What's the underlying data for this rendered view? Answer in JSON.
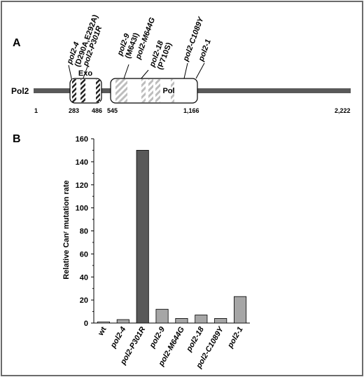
{
  "panel_a": {
    "letter": "A",
    "protein_label": "Pol2",
    "exo_label": "Exo",
    "pol_label": "Pol",
    "positions": [
      "1",
      "283",
      "486",
      "545",
      "1,166",
      "2,222"
    ],
    "mutation_labels": [
      {
        "line1": "pol2-4",
        "line2": "(D290A,E292A)"
      },
      {
        "line1": "pol2-P301R"
      },
      {
        "line1": "pol2-9",
        "line2": "(M643I)"
      },
      {
        "line1": "pol2-M644G"
      },
      {
        "line1": "pol2-18",
        "line2": "(P710S)"
      },
      {
        "line1": "pol2-C1089Y"
      },
      {
        "line1": "pol2-1"
      }
    ]
  },
  "panel_b": {
    "letter": "B",
    "ylabel": "Relative Canʳ mutation rate"
  },
  "colors": {
    "frame": "#6b6b6b",
    "protein_bar": "#595959",
    "highlight_bar": "#595959",
    "normal_bar": "#a6a6a6",
    "wt_bar": "#d9d9d9"
  },
  "chart_data": {
    "type": "bar",
    "categories": [
      "wt",
      "pol2-4",
      "pol2-P301R",
      "pol2-9",
      "pol2-M644G",
      "pol2-18",
      "pol2-C1089Y",
      "pol2-1"
    ],
    "values": [
      1,
      3,
      150,
      12,
      4,
      7,
      4,
      23
    ],
    "ylim": [
      0,
      160
    ],
    "yticks": [
      0,
      20,
      40,
      60,
      80,
      100,
      120,
      140,
      160
    ],
    "xlabel": "",
    "ylabel": "Relative Canʳ mutation rate",
    "grid": false
  }
}
